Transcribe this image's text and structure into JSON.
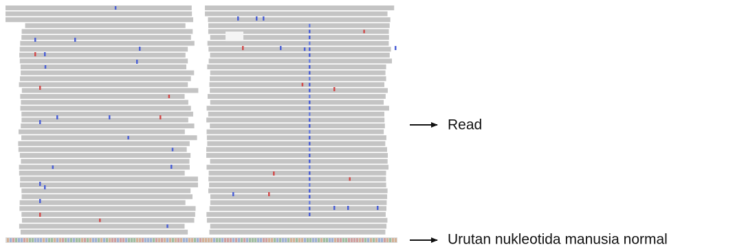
{
  "annotations": [
    {
      "label": "Read"
    },
    {
      "label": "Urutan nukleotida manusia normal"
    }
  ]
}
